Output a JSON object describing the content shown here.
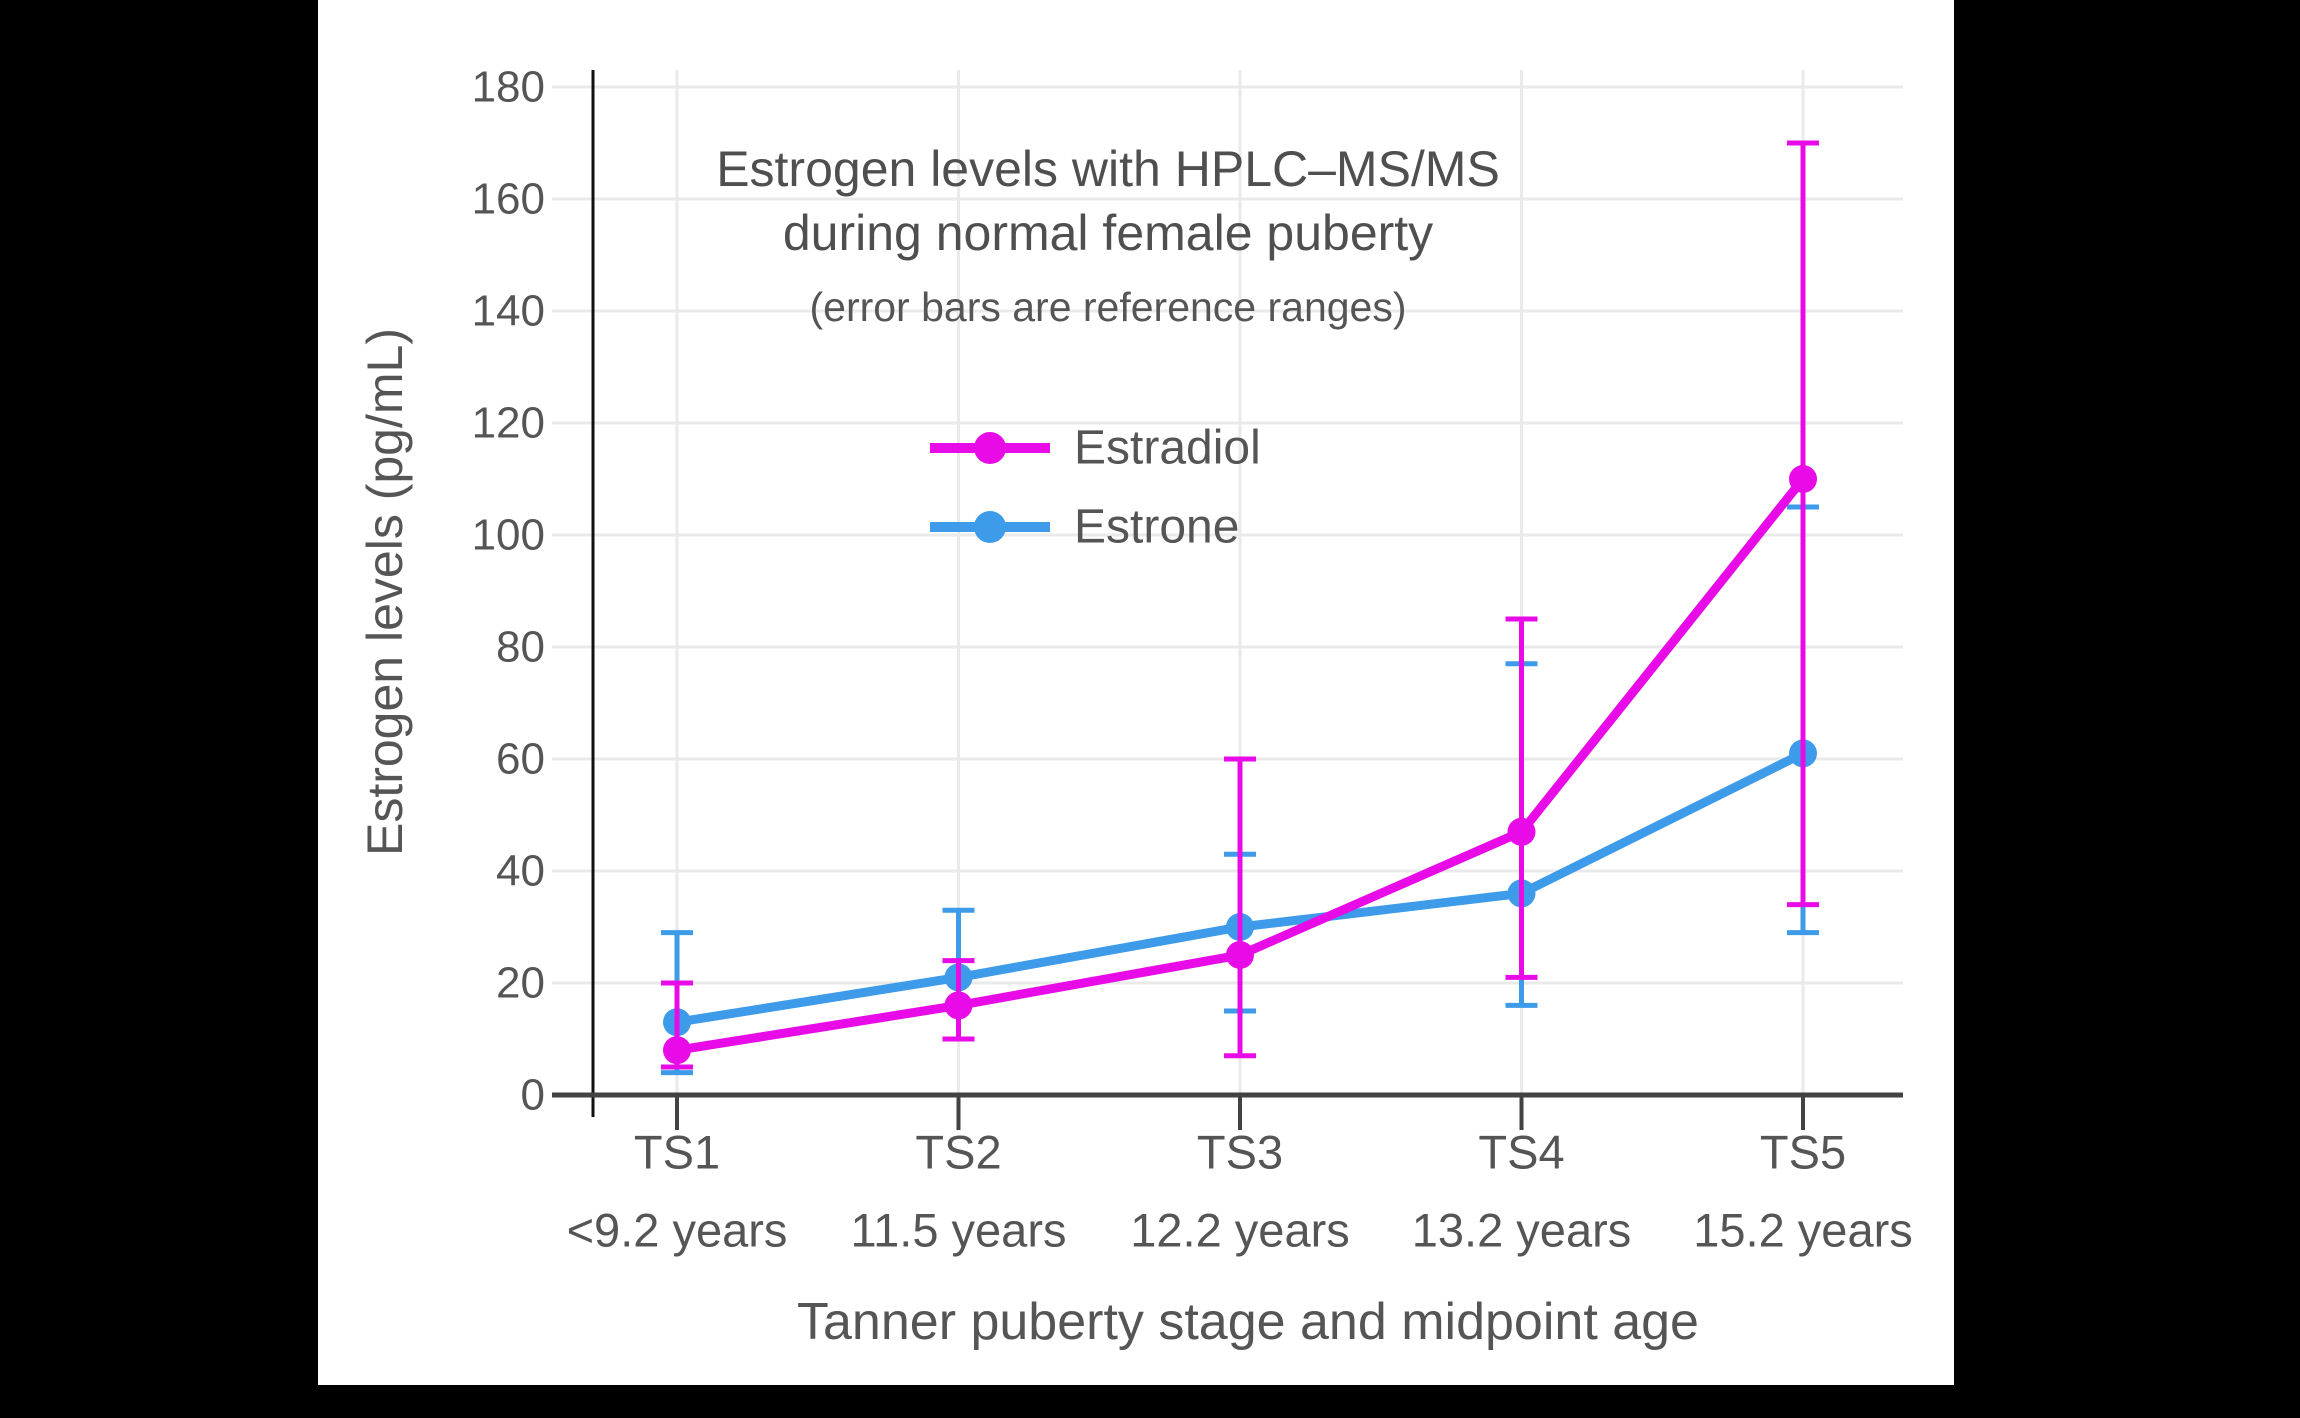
{
  "canvas": {
    "background": "#000000",
    "panel_background": "#ffffff"
  },
  "title": {
    "line1": "Estrogen levels with HPLC–MS/MS",
    "line2": "during normal female puberty",
    "subtitle": "(error bars are reference ranges)"
  },
  "axes": {
    "x_title": "Tanner puberty stage and midpoint age",
    "y_title": "Estrogen levels (pg/mL)"
  },
  "colors": {
    "estradiol": "#E80BE8",
    "estrone": "#3D9BE9",
    "text": "#555555",
    "grid": "#EAEAEA",
    "x_axis": "#424242",
    "y_axis": "#111111"
  },
  "chart_data": {
    "type": "line",
    "title": "Estrogen levels with HPLC–MS/MS during normal female puberty",
    "subtitle": "(error bars are reference ranges)",
    "xlabel": "Tanner puberty stage and midpoint age",
    "ylabel": "Estrogen levels (pg/mL)",
    "categories": [
      "TS1",
      "TS2",
      "TS3",
      "TS4",
      "TS5"
    ],
    "category_sublabels": [
      "<9.2 years",
      "11.5 years",
      "12.2 years",
      "13.2 years",
      "15.2 years"
    ],
    "ylim": [
      0,
      180
    ],
    "ytick_step": 20,
    "grid": true,
    "legend_position": "upper-center-inside",
    "series": [
      {
        "name": "Estradiol",
        "color": "#E80BE8",
        "values": [
          8,
          16,
          25,
          47,
          110
        ],
        "error_low": [
          5,
          10,
          7,
          21,
          34
        ],
        "error_high": [
          20,
          24,
          60,
          85,
          170
        ]
      },
      {
        "name": "Estrone",
        "color": "#3D9BE9",
        "values": [
          13,
          21,
          30,
          36,
          61
        ],
        "error_low": [
          4,
          10,
          15,
          16,
          29
        ],
        "error_high": [
          29,
          33,
          43,
          77,
          105
        ]
      }
    ]
  }
}
